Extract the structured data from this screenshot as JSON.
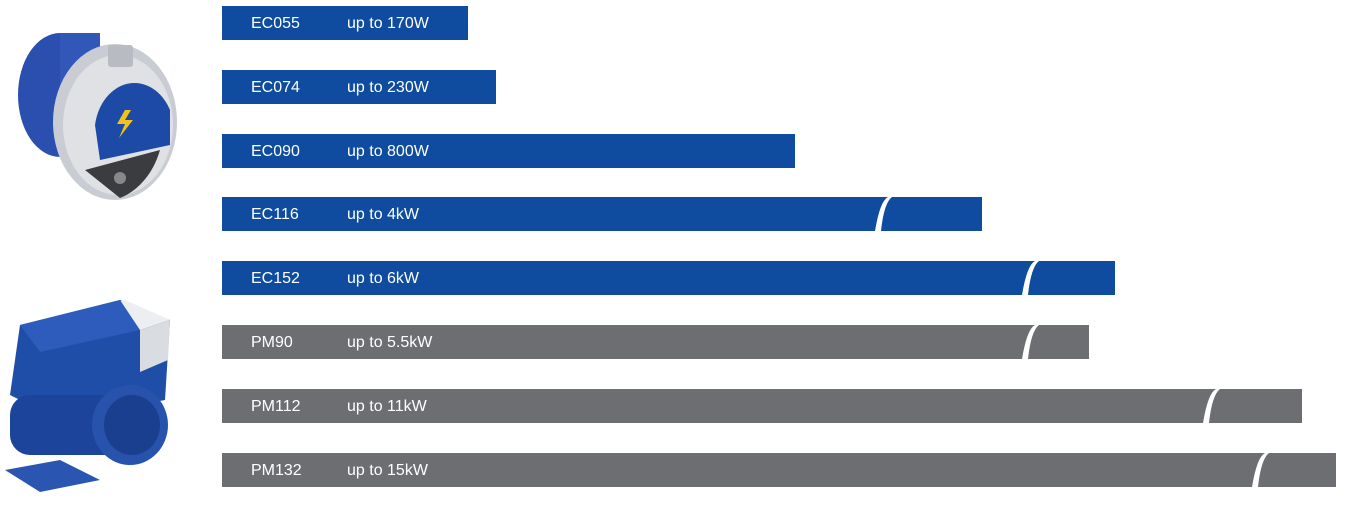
{
  "rows": [
    {
      "model": "EC055",
      "power": "up to 170W",
      "color": "#0f4ca0"
    },
    {
      "model": "EC074",
      "power": "up to 230W",
      "color": "#0f4ca0"
    },
    {
      "model": "EC090",
      "power": "up to 800W",
      "color": "#0f4ca0"
    },
    {
      "model": "EC116",
      "power": "up to 4kW",
      "color": "#0f4ca0"
    },
    {
      "model": "EC152",
      "power": "up to 6kW",
      "color": "#0f4ca0"
    },
    {
      "model": "PM90",
      "power": "up to 5.5kW",
      "color": "#6d6e72"
    },
    {
      "model": "PM112",
      "power": "up to 11kW",
      "color": "#6d6e72"
    },
    {
      "model": "PM132",
      "power": "up to 15kW",
      "color": "#6d6e72"
    }
  ]
}
